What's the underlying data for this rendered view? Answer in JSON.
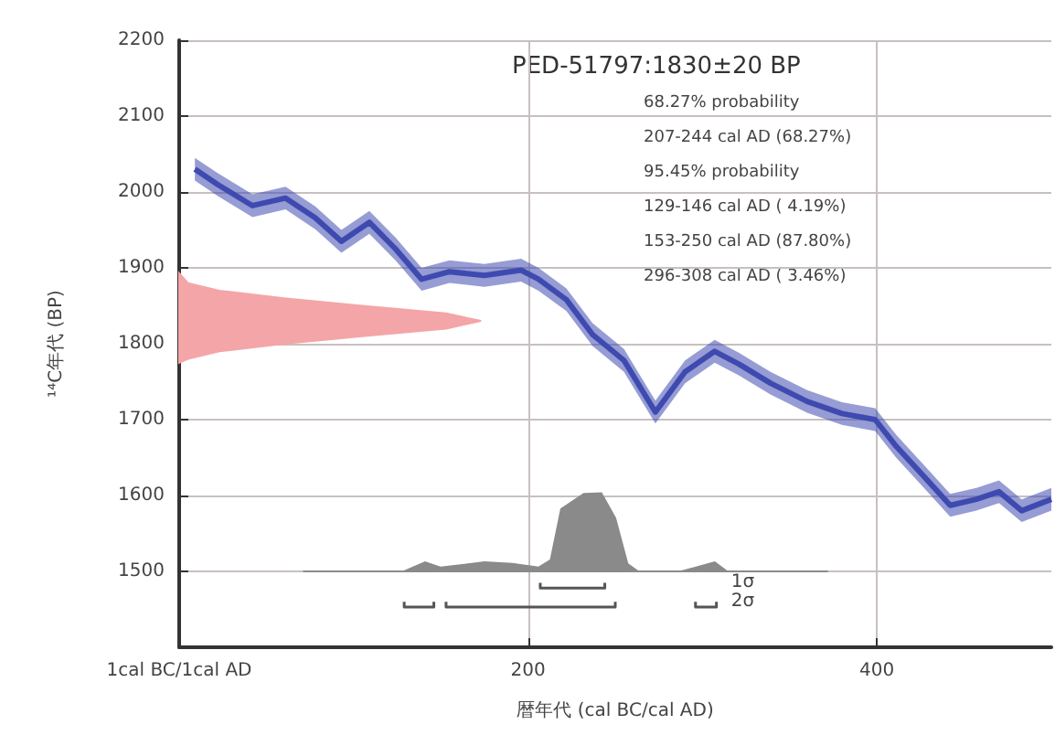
{
  "chart_data": {
    "type": "line",
    "title": "PED-51797:1830±20 BP",
    "xlabel": "暦年代 (cal BC/cal AD)",
    "ylabel": "¹⁴C年代 (BP)",
    "annotations": [
      "68.27% probability",
      "207-244 cal AD (68.27%)",
      "95.45% probability",
      "129-146 cal AD ( 4.19%)",
      "153-250 cal AD (87.80%)",
      "296-308 cal AD ( 3.46%)"
    ],
    "xlim": [
      0,
      500
    ],
    "xticks": [
      {
        "value": 0,
        "label": "1cal BC/1cal AD"
      },
      200,
      400
    ],
    "ylim": [
      1400,
      2200
    ],
    "yticks": [
      1500,
      1600,
      1700,
      1800,
      1900,
      2000,
      2100,
      2200
    ],
    "grid": true,
    "legend": false,
    "marker": "none",
    "series": [
      {
        "color": "#3f4ab0",
        "x": [
          9,
          22,
          42,
          61,
          78,
          93,
          109,
          124,
          139,
          155,
          175,
          196,
          206,
          222,
          237,
          255,
          273,
          290,
          307,
          321,
          339,
          360,
          380,
          399,
          411,
          427,
          442,
          457,
          470,
          483,
          500
        ],
        "values": [
          2030,
          2010,
          1982,
          1992,
          1966,
          1935,
          1960,
          1925,
          1885,
          1895,
          1890,
          1897,
          1885,
          1858,
          1812,
          1778,
          1710,
          1763,
          1790,
          1773,
          1748,
          1724,
          1708,
          1700,
          1665,
          1625,
          1587,
          1595,
          1605,
          1580,
          1595
        ],
        "lower": [
          2015,
          1995,
          1967,
          1977,
          1951,
          1920,
          1945,
          1910,
          1870,
          1880,
          1875,
          1882,
          1870,
          1843,
          1797,
          1763,
          1695,
          1748,
          1775,
          1758,
          1733,
          1709,
          1693,
          1685,
          1650,
          1610,
          1572,
          1580,
          1590,
          1565,
          1580
        ],
        "upper": [
          2045,
          2025,
          1997,
          2007,
          1981,
          1950,
          1975,
          1940,
          1900,
          1910,
          1905,
          1912,
          1900,
          1873,
          1827,
          1793,
          1725,
          1778,
          1805,
          1788,
          1763,
          1739,
          1723,
          1715,
          1680,
          1640,
          1602,
          1610,
          1620,
          1595,
          1610
        ]
      },
      {
        "type": "area",
        "color": "#f4a5a8",
        "x": [
          0,
          5,
          23,
          60,
          105,
          153,
          173,
          153,
          105,
          60,
          23,
          5,
          0
        ],
        "values": [
          1893,
          1880,
          1870,
          1860,
          1850,
          1840,
          1830,
          1820,
          1810,
          1800,
          1790,
          1780,
          1775
        ]
      },
      {
        "type": "area",
        "color": "#8a8a8a",
        "x": [
          71,
          129,
          141,
          150,
          175,
          191,
          206,
          213,
          219,
          232,
          242,
          250,
          257,
          263,
          288,
          307,
          314,
          372
        ],
        "values": [
          1500,
          1500,
          1512,
          1505,
          1512,
          1510,
          1505,
          1515,
          1582,
          1602,
          1603,
          1570,
          1510,
          1500,
          1500,
          1512,
          1500,
          1500
        ]
      },
      {
        "name": "1σ",
        "color": "#555555",
        "x": [
          207,
          207,
          244,
          244
        ],
        "values": [
          1485,
          1478,
          1478,
          1485
        ]
      },
      {
        "name": "2σ",
        "color": "#555555",
        "x": [
          129,
          129,
          146,
          146,
          null,
          153,
          153,
          250,
          250,
          null,
          296,
          296,
          308,
          308
        ],
        "values": [
          1460,
          1453,
          1453,
          1460,
          null,
          1460,
          1453,
          1453,
          1460,
          null,
          1460,
          1453,
          1453,
          1460
        ]
      }
    ]
  }
}
